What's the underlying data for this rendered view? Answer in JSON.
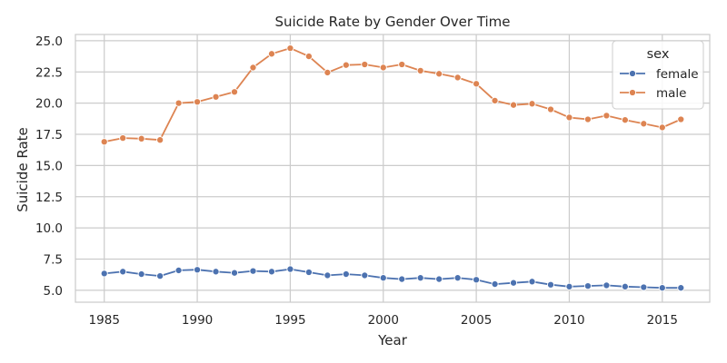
{
  "chart_data": {
    "type": "line",
    "title": "Suicide Rate by Gender Over Time",
    "xlabel": "Year",
    "ylabel": "Suicide Rate",
    "xlim": [
      1983.45,
      2017.55
    ],
    "ylim": [
      4.05,
      25.5
    ],
    "x_ticks": [
      1985,
      1990,
      1995,
      2000,
      2005,
      2010,
      2015
    ],
    "y_ticks": [
      5.0,
      7.5,
      10.0,
      12.5,
      15.0,
      17.5,
      20.0,
      22.5,
      25.0
    ],
    "grid": true,
    "legend": {
      "title": "sex",
      "placement": "top-right"
    },
    "x": [
      1985,
      1986,
      1987,
      1988,
      1989,
      1990,
      1991,
      1992,
      1993,
      1994,
      1995,
      1996,
      1997,
      1998,
      1999,
      2000,
      2001,
      2002,
      2003,
      2004,
      2005,
      2006,
      2007,
      2008,
      2009,
      2010,
      2011,
      2012,
      2013,
      2014,
      2015,
      2016
    ],
    "series": [
      {
        "name": "female",
        "color": "#4c72b0",
        "values": [
          6.35,
          6.5,
          6.3,
          6.15,
          6.6,
          6.65,
          6.5,
          6.4,
          6.55,
          6.5,
          6.7,
          6.45,
          6.2,
          6.3,
          6.2,
          6.0,
          5.9,
          6.0,
          5.9,
          6.0,
          5.85,
          5.5,
          5.6,
          5.7,
          5.45,
          5.3,
          5.35,
          5.4,
          5.3,
          5.25,
          5.2,
          5.2
        ]
      },
      {
        "name": "male",
        "color": "#dd8452",
        "values": [
          16.9,
          17.2,
          17.15,
          17.05,
          20.0,
          20.1,
          20.5,
          20.9,
          22.85,
          23.95,
          24.4,
          23.75,
          22.45,
          23.05,
          23.1,
          22.85,
          23.1,
          22.6,
          22.35,
          22.05,
          21.55,
          20.2,
          19.85,
          19.95,
          19.5,
          18.85,
          18.7,
          19.0,
          18.65,
          18.35,
          18.05,
          18.7
        ]
      }
    ]
  }
}
